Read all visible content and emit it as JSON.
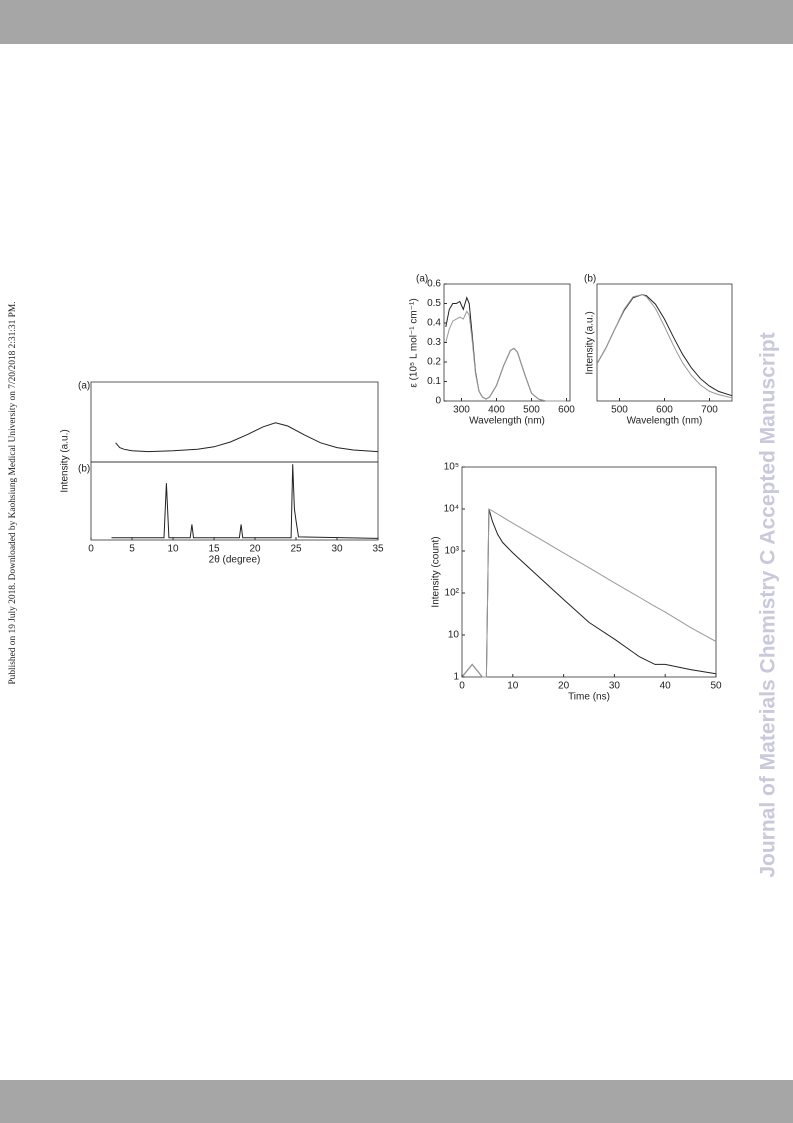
{
  "sidebar": {
    "left": "Published on 19 July 2018. Downloaded by Kaohsiung Medical University on 7/20/2018 2:31:31 PM.",
    "right": "Journal of Materials Chemistry C Accepted Manuscript"
  },
  "chart_data": [
    {
      "type": "line",
      "panel_label": "(a)",
      "xlim": [
        0,
        35
      ],
      "ylim": [
        0,
        1
      ],
      "x": [
        3,
        3.5,
        4,
        5,
        7,
        10,
        13,
        15,
        17,
        19,
        21,
        22.5,
        24,
        26,
        28,
        30,
        32,
        35
      ],
      "series": [
        {
          "color": "#222222",
          "values": [
            0.24,
            0.18,
            0.16,
            0.14,
            0.13,
            0.14,
            0.16,
            0.19,
            0.25,
            0.34,
            0.44,
            0.49,
            0.45,
            0.34,
            0.24,
            0.18,
            0.15,
            0.13
          ]
        }
      ]
    },
    {
      "type": "line",
      "panel_label": "(b)",
      "xlabel": "2θ (degree)",
      "ylabel": "Intensity (a.u.)",
      "xlim": [
        0,
        35
      ],
      "ylim": [
        0,
        1
      ],
      "xticks": [
        0,
        5,
        10,
        15,
        20,
        25,
        30,
        35
      ],
      "x": [
        2.5,
        8.9,
        9.2,
        9.5,
        12.1,
        12.3,
        12.5,
        18.1,
        18.3,
        18.5,
        24.4,
        24.6,
        24.8,
        25.0,
        25.3,
        35
      ],
      "series": [
        {
          "color": "#222222",
          "values": [
            0.03,
            0.03,
            0.73,
            0.03,
            0.03,
            0.2,
            0.03,
            0.03,
            0.2,
            0.03,
            0.03,
            0.97,
            0.4,
            0.25,
            0.04,
            0.02
          ]
        }
      ]
    },
    {
      "type": "line",
      "panel_label": "(a)",
      "xlabel": "Wavelength (nm)",
      "ylabel": "ε (10⁵ L mol⁻¹ cm⁻¹)",
      "xlim": [
        250,
        610
      ],
      "ylim": [
        0,
        0.6
      ],
      "xticks": [
        300,
        400,
        500,
        600
      ],
      "yticks": [
        0,
        0.1,
        0.2,
        0.3,
        0.4,
        0.5,
        0.6
      ],
      "x": [
        255,
        265,
        275,
        285,
        295,
        305,
        315,
        322,
        330,
        340,
        350,
        360,
        370,
        380,
        400,
        420,
        440,
        450,
        460,
        480,
        500,
        520,
        540,
        600
      ],
      "series": [
        {
          "color": "#222222",
          "values": [
            0.38,
            0.47,
            0.5,
            0.5,
            0.51,
            0.47,
            0.53,
            0.5,
            0.35,
            0.15,
            0.05,
            0.02,
            0.01,
            0.02,
            0.08,
            0.18,
            0.26,
            0.27,
            0.25,
            0.14,
            0.04,
            0.01,
            0,
            0
          ]
        },
        {
          "color": "#999999",
          "values": [
            0.3,
            0.37,
            0.41,
            0.42,
            0.43,
            0.42,
            0.46,
            0.44,
            0.32,
            0.14,
            0.05,
            0.02,
            0.01,
            0.02,
            0.08,
            0.18,
            0.26,
            0.27,
            0.25,
            0.14,
            0.04,
            0.01,
            0,
            0
          ]
        }
      ]
    },
    {
      "type": "line",
      "panel_label": "(b)",
      "xlabel": "Wavelength (nm)",
      "ylabel": "Intensity (a.u.)",
      "xlim": [
        450,
        750
      ],
      "ylim": [
        0,
        1.1
      ],
      "xticks": [
        500,
        600,
        700
      ],
      "x": [
        450,
        470,
        490,
        510,
        530,
        550,
        560,
        580,
        600,
        620,
        640,
        660,
        680,
        700,
        720,
        750
      ],
      "series": [
        {
          "color": "#222222",
          "values": [
            0.35,
            0.5,
            0.68,
            0.85,
            0.97,
            1.0,
            0.99,
            0.91,
            0.77,
            0.6,
            0.44,
            0.31,
            0.21,
            0.14,
            0.09,
            0.05
          ]
        },
        {
          "color": "#999999",
          "values": [
            0.35,
            0.5,
            0.68,
            0.86,
            0.98,
            1.0,
            0.98,
            0.87,
            0.7,
            0.52,
            0.36,
            0.24,
            0.15,
            0.09,
            0.06,
            0.03
          ]
        }
      ]
    },
    {
      "type": "line",
      "yscale": "log",
      "xlabel": "Time (ns)",
      "ylabel": "Intensity (count)",
      "xlim": [
        0,
        50
      ],
      "ylim": [
        1,
        100000
      ],
      "xticks": [
        0,
        10,
        20,
        30,
        40,
        50
      ],
      "yticks": [
        1,
        10,
        {
          "value": 100,
          "label": "10²"
        },
        {
          "value": 1000,
          "label": "10³"
        },
        {
          "value": 10000,
          "label": "10⁴"
        },
        {
          "value": 100000,
          "label": "10⁵"
        }
      ],
      "x": [
        0,
        2,
        4,
        4.8,
        5.3,
        6,
        7,
        8,
        10,
        15,
        20,
        25,
        30,
        35,
        38,
        40,
        45,
        50
      ],
      "series": [
        {
          "color": "#222222",
          "values": [
            1,
            2,
            1,
            1,
            10000,
            5000,
            2500,
            1600,
            900,
            250,
            70,
            20,
            8,
            3,
            2,
            2,
            1.5,
            1.2
          ]
        },
        {
          "color": "#999999",
          "values": [
            1,
            2,
            1,
            1,
            10000,
            8900,
            7600,
            6400,
            4600,
            2050,
            900,
            400,
            175,
            78,
            48,
            35,
            15,
            7
          ]
        }
      ]
    }
  ]
}
